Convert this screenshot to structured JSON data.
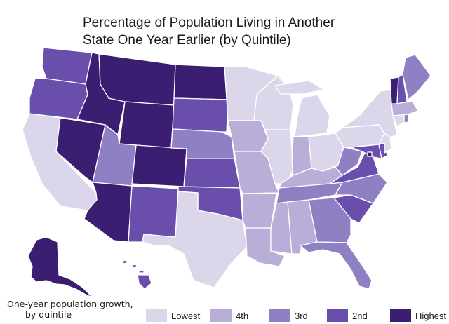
{
  "title": {
    "line1": "Percentage of Population Living in Another",
    "line2": "State One Year Earlier (by Quintile)"
  },
  "note": {
    "line1": "One-year population growth,",
    "line2": "by quintile"
  },
  "legend": [
    {
      "key": "q1",
      "label": "Lowest"
    },
    {
      "key": "q2",
      "label": "4th"
    },
    {
      "key": "q3",
      "label": "3rd"
    },
    {
      "key": "q4",
      "label": "2nd"
    },
    {
      "key": "q5",
      "label": "Highest"
    }
  ],
  "colors": {
    "q1": "#dcd6ea",
    "q2": "#b9aed8",
    "q3": "#8f80c4",
    "q4": "#6a4eab",
    "q5": "#3b1d72"
  },
  "states": {
    "WA": "q4",
    "OR": "q4",
    "CA": "q1",
    "NV": "q5",
    "ID": "q5",
    "MT": "q5",
    "WY": "q5",
    "UT": "q3",
    "AZ": "q5",
    "CO": "q5",
    "NM": "q4",
    "ND": "q5",
    "SD": "q4",
    "NE": "q3",
    "KS": "q4",
    "OK": "q4",
    "TX": "q1",
    "MN": "q1",
    "IA": "q2",
    "MO": "q2",
    "AR": "q2",
    "LA": "q2",
    "WI": "q1",
    "IL": "q1",
    "MI": "q1",
    "IN": "q2",
    "OH": "q1",
    "KY": "q2",
    "TN": "q3",
    "MS": "q2",
    "AL": "q2",
    "GA": "q3",
    "FL": "q3",
    "SC": "q4",
    "NC": "q3",
    "VA": "q4",
    "WV": "q3",
    "MD": "q4",
    "DE": "q4",
    "DC": "q5",
    "PA": "q1",
    "NY": "q1",
    "NJ": "q1",
    "CT": "q1",
    "RI": "q3",
    "MA": "q2",
    "VT": "q5",
    "NH": "q4",
    "ME": "q3",
    "AK": "q5",
    "HI": "q4"
  }
}
